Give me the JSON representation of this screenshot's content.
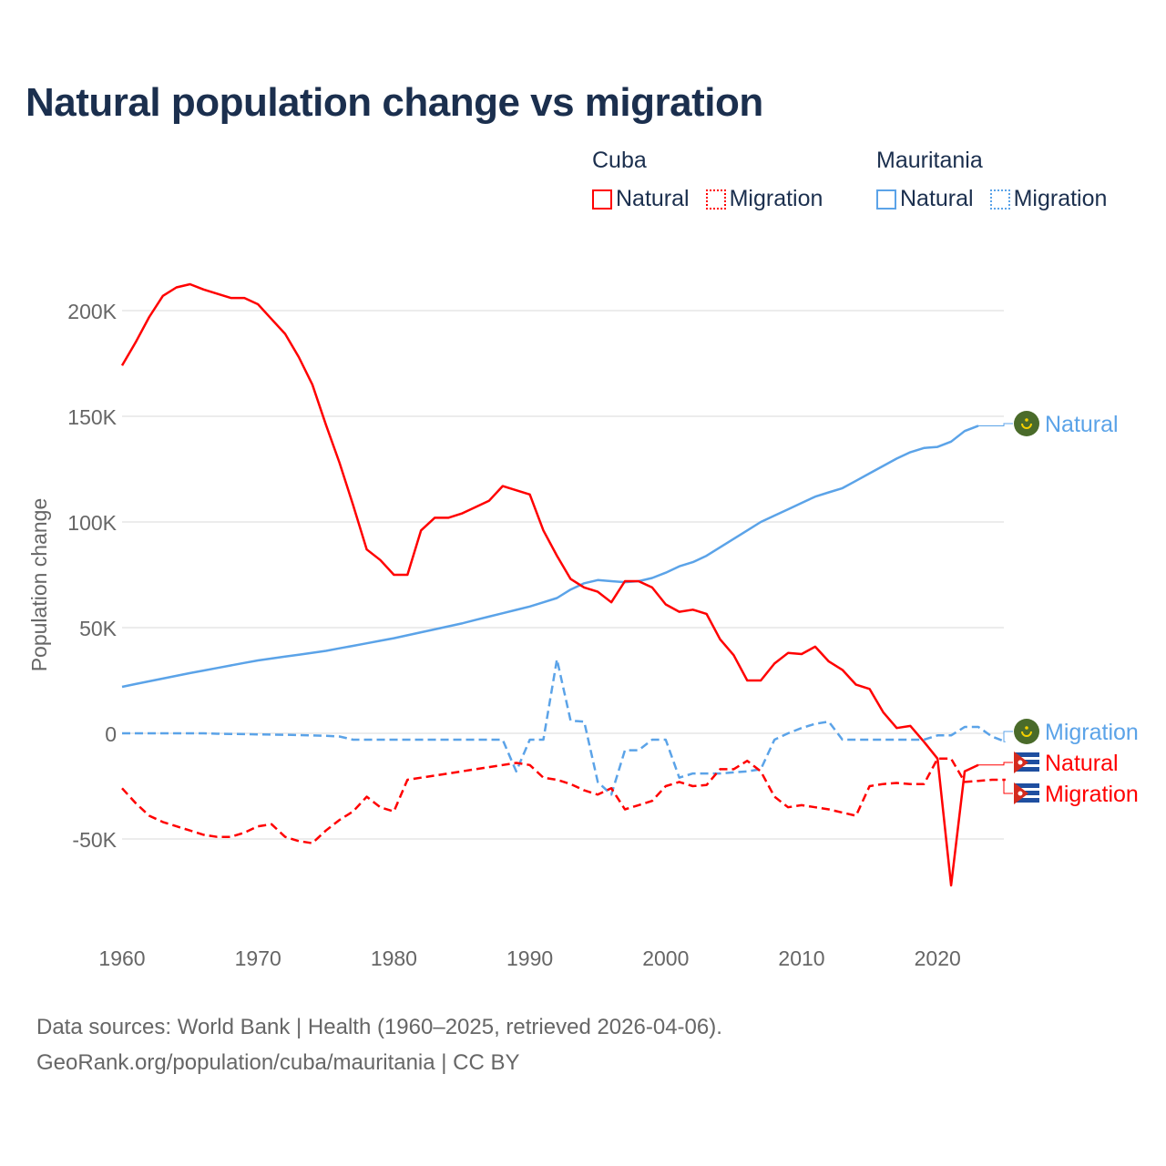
{
  "chart_data": {
    "type": "line",
    "title": "Natural population change vs migration",
    "xlabel": "",
    "ylabel": "Population change",
    "xlim": [
      1960,
      2025
    ],
    "ylim": [
      -85000,
      245000
    ],
    "x_ticks": [
      1960,
      1970,
      1980,
      1990,
      2000,
      2010,
      2020
    ],
    "x_tick_labels": [
      "1960",
      "1970",
      "1980",
      "1990",
      "2000",
      "2010",
      "2020"
    ],
    "y_ticks": [
      -50000,
      0,
      50000,
      100000,
      150000,
      200000
    ],
    "y_tick_labels": [
      "-50K",
      "0",
      "50K",
      "100K",
      "150K",
      "200K"
    ],
    "grid": true,
    "legend_placement": "top-right",
    "legend_groups": [
      {
        "country": "Cuba",
        "items": [
          "Natural",
          "Migration"
        ]
      },
      {
        "country": "Mauritania",
        "items": [
          "Natural",
          "Migration"
        ]
      }
    ],
    "series": [
      {
        "name": "Cuba Natural",
        "label": "Natural",
        "country": "Cuba",
        "color": "#ff0000",
        "dash": false,
        "start_year": 1960,
        "values": [
          174000,
          185000,
          197000,
          207000,
          211000,
          212500,
          210000,
          208000,
          206000,
          206000,
          203000,
          196000,
          189000,
          178000,
          165000,
          146000,
          128000,
          108000,
          87000,
          82000,
          75000,
          75000,
          96000,
          102000,
          102000,
          104000,
          107000,
          110000,
          117000,
          115000,
          113000,
          96000,
          84000,
          73000,
          69000,
          67000,
          62000,
          72000,
          72000,
          69000,
          61000,
          57500,
          58500,
          56500,
          44500,
          37000,
          25000,
          25000,
          33000,
          38000,
          37500,
          41000,
          34000,
          30000,
          23000,
          21000,
          10000,
          2500,
          3500,
          -4000,
          -12000,
          -72000,
          -18000,
          -15000
        ]
      },
      {
        "name": "Cuba Migration",
        "label": "Migration",
        "country": "Cuba",
        "color": "#ff0000",
        "dash": true,
        "start_year": 1960,
        "values": [
          -26000,
          -33000,
          -39000,
          -42000,
          -44000,
          -46000,
          -48000,
          -49000,
          -49000,
          -47000,
          -44000,
          -43000,
          -49000,
          -51000,
          -52000,
          -46000,
          -41000,
          -37000,
          -30000,
          -35000,
          -37000,
          -22000,
          -21000,
          -20000,
          -19000,
          -18000,
          -17000,
          -16000,
          -15000,
          -14000,
          -15000,
          -21000,
          -22000,
          -24000,
          -27000,
          -29000,
          -26000,
          -36000,
          -34000,
          -32000,
          -25000,
          -23000,
          -25000,
          -24500,
          -17000,
          -17000,
          -13000,
          -18000,
          -30000,
          -35000,
          -34000,
          -35000,
          -36000,
          -37500,
          -39000,
          -25000,
          -24000,
          -23500,
          -24000,
          -24000,
          -12000,
          -12000,
          -23000,
          -22500,
          -22000,
          -22000
        ]
      },
      {
        "name": "Mauritania Natural",
        "label": "Natural",
        "country": "Mauritania",
        "color": "#5ba3e8",
        "dash": false,
        "start_year": 1960,
        "values": [
          22000,
          23300,
          24600,
          25900,
          27200,
          28500,
          29700,
          30900,
          32100,
          33300,
          34500,
          35400,
          36300,
          37200,
          38100,
          39000,
          40200,
          41400,
          42600,
          43800,
          45000,
          46400,
          47800,
          49200,
          50600,
          52000,
          53600,
          55200,
          56800,
          58400,
          60000,
          62000,
          64000,
          68000,
          71000,
          72500,
          72000,
          71500,
          72000,
          73500,
          76000,
          79000,
          81000,
          84000,
          88000,
          92000,
          96000,
          100000,
          103000,
          106000,
          109000,
          112000,
          114000,
          116000,
          119500,
          123000,
          126500,
          130000,
          133000,
          135000,
          135500,
          138000,
          143000,
          145500
        ]
      },
      {
        "name": "Mauritania Migration",
        "label": "Migration",
        "country": "Mauritania",
        "color": "#5ba3e8",
        "dash": true,
        "start_year": 1960,
        "values": [
          0,
          0,
          0,
          0,
          0,
          0,
          0,
          -200,
          -300,
          -400,
          -500,
          -600,
          -700,
          -800,
          -1000,
          -1200,
          -1500,
          -3000,
          -3000,
          -3000,
          -3000,
          -3000,
          -3000,
          -3000,
          -3000,
          -3000,
          -3000,
          -3000,
          -3000,
          -18000,
          -3000,
          -3000,
          35000,
          6000,
          5500,
          -23000,
          -29000,
          -8000,
          -8000,
          -3000,
          -3000,
          -21000,
          -19000,
          -19000,
          -19000,
          -18500,
          -18000,
          -17000,
          -3000,
          0,
          2500,
          4500,
          5500,
          -3000,
          -3000,
          -3000,
          -3000,
          -3000,
          -3000,
          -3000,
          -1000,
          -1000,
          3000,
          3000,
          -1500,
          -4000
        ]
      }
    ],
    "end_labels": [
      {
        "series": "Mauritania Natural",
        "text": "Natural",
        "flag": "mauritania-flag"
      },
      {
        "series": "Mauritania Migration",
        "text": "Migration",
        "flag": "mauritania-flag"
      },
      {
        "series": "Cuba Natural",
        "text": "Natural",
        "flag": "cuba-flag"
      },
      {
        "series": "Cuba Migration",
        "text": "Migration",
        "flag": "cuba-flag"
      }
    ]
  },
  "legend": {
    "cuba": "Cuba",
    "mauritania": "Mauritania",
    "natural": "Natural",
    "migration": "Migration"
  },
  "footer": {
    "line1": "Data sources: World Bank | Health (1960–2025, retrieved 2026-04-06).",
    "line2": "GeoRank.org/population/cuba/mauritania | CC BY"
  }
}
